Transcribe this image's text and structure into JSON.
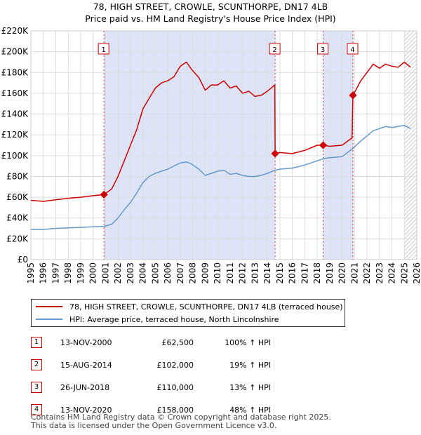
{
  "header": {
    "title_line1": "78, HIGH STREET, CROWLE, SCUNTHORPE, DN17 4LB",
    "title_line2": "Price paid vs. HM Land Registry's House Price Index (HPI)"
  },
  "colors": {
    "price": "#cc0000",
    "hpi": "#6699cc",
    "shade": "#dde4f7",
    "grid": "#dddddd"
  },
  "legend": {
    "price_label": "78, HIGH STREET, CROWLE, SCUNTHORPE, DN17 4LB (terraced house)",
    "hpi_label": "HPI: Average price, terraced house, North Lincolnshire"
  },
  "transactions": [
    {
      "num": "1",
      "date": "13-NOV-2000",
      "price": "£62,500",
      "hpi_change": "100% ↑ HPI"
    },
    {
      "num": "2",
      "date": "15-AUG-2014",
      "price": "£102,000",
      "hpi_change": "19% ↑ HPI"
    },
    {
      "num": "3",
      "date": "26-JUN-2018",
      "price": "£110,000",
      "hpi_change": "13% ↑ HPI"
    },
    {
      "num": "4",
      "date": "13-NOV-2020",
      "price": "£158,000",
      "hpi_change": "48% ↑ HPI"
    }
  ],
  "footer": {
    "line1": "Contains HM Land Registry data © Crown copyright and database right 2025.",
    "line2": "This data is licensed under the Open Government Licence v3.0."
  },
  "chart_data": {
    "type": "line",
    "title": "78, HIGH STREET, CROWLE, SCUNTHORPE, DN17 4LB",
    "subtitle": "Price paid vs. HM Land Registry's House Price Index (HPI)",
    "xlabel": "",
    "ylabel": "",
    "xlim": [
      1995,
      2026
    ],
    "ylim": [
      0,
      220000
    ],
    "yticks": [
      0,
      20000,
      40000,
      60000,
      80000,
      100000,
      120000,
      140000,
      160000,
      180000,
      200000,
      220000
    ],
    "ytick_labels": [
      "£0",
      "£20K",
      "£40K",
      "£60K",
      "£80K",
      "£100K",
      "£120K",
      "£140K",
      "£160K",
      "£180K",
      "£200K",
      "£220K"
    ],
    "xticks": [
      "1995",
      "1996",
      "1997",
      "1998",
      "1999",
      "2000",
      "2001",
      "2002",
      "2003",
      "2004",
      "2005",
      "2006",
      "2007",
      "2008",
      "2009",
      "2010",
      "2011",
      "2012",
      "2013",
      "2014",
      "2015",
      "2016",
      "2017",
      "2018",
      "2019",
      "2020",
      "2021",
      "2022",
      "2023",
      "2024",
      "2025",
      "2026"
    ],
    "shaded_periods": [
      [
        2000.87,
        2014.62
      ],
      [
        2018.48,
        2020.87
      ]
    ],
    "hatch_from": 2025.0,
    "series": [
      {
        "name": "78, HIGH STREET, CROWLE, SCUNTHORPE, DN17 4LB (terraced house)",
        "x": [
          1995.0,
          1996.0,
          1997.0,
          1998.0,
          1999.0,
          2000.0,
          2000.87,
          2001.5,
          2002.0,
          2002.5,
          2003.0,
          2003.5,
          2004.0,
          2004.5,
          2005.0,
          2005.5,
          2006.0,
          2006.5,
          2007.0,
          2007.5,
          2007.9,
          2008.5,
          2009.0,
          2009.5,
          2010.0,
          2010.5,
          2011.0,
          2011.5,
          2012.0,
          2012.5,
          2013.0,
          2013.5,
          2014.0,
          2014.6,
          2014.62,
          2015.0,
          2016.0,
          2017.0,
          2018.0,
          2018.48,
          2019.0,
          2020.0,
          2020.8,
          2020.87,
          2021.5,
          2022.0,
          2022.5,
          2023.0,
          2023.5,
          2024.0,
          2024.5,
          2025.0,
          2025.5
        ],
        "values": [
          57000,
          56000,
          57500,
          59000,
          60000,
          61500,
          62500,
          68000,
          80000,
          95000,
          110000,
          125000,
          145000,
          155000,
          165000,
          170000,
          172000,
          176000,
          186000,
          190000,
          183000,
          175000,
          163000,
          168000,
          168000,
          172000,
          165000,
          167000,
          160000,
          162000,
          157000,
          158000,
          162000,
          168000,
          102000,
          103000,
          102000,
          105000,
          110000,
          110000,
          109000,
          110000,
          117000,
          158000,
          172000,
          180000,
          188000,
          184000,
          188000,
          186000,
          185000,
          190000,
          185000
        ]
      },
      {
        "name": "HPI: Average price, terraced house, North Lincolnshire",
        "x": [
          1995.0,
          1996.0,
          1997.0,
          1998.0,
          1999.0,
          2000.0,
          2000.87,
          2001.5,
          2002.0,
          2002.5,
          2003.0,
          2003.5,
          2004.0,
          2004.5,
          2005.0,
          2005.5,
          2006.0,
          2006.5,
          2007.0,
          2007.5,
          2007.9,
          2008.5,
          2009.0,
          2009.5,
          2010.0,
          2010.5,
          2011.0,
          2011.5,
          2012.0,
          2012.5,
          2013.0,
          2013.5,
          2014.0,
          2014.62,
          2015.0,
          2016.0,
          2017.0,
          2018.0,
          2018.48,
          2019.0,
          2020.0,
          2020.87,
          2021.5,
          2022.0,
          2022.5,
          2023.0,
          2023.5,
          2024.0,
          2024.5,
          2025.0,
          2025.5
        ],
        "values": [
          29000,
          29000,
          30000,
          30500,
          31000,
          31500,
          32000,
          34000,
          40000,
          48000,
          55000,
          64000,
          74000,
          80000,
          83000,
          85000,
          87000,
          90000,
          93000,
          94000,
          92000,
          87000,
          81000,
          83000,
          85000,
          86000,
          82000,
          83000,
          81000,
          80000,
          80000,
          81000,
          83000,
          86000,
          87000,
          88000,
          91000,
          95000,
          97000,
          98000,
          99000,
          107000,
          114000,
          119000,
          124000,
          126000,
          128000,
          127000,
          128000,
          129000,
          126000
        ]
      }
    ],
    "markers": [
      {
        "label": "1",
        "x": 2000.87,
        "y": 62500
      },
      {
        "label": "2",
        "x": 2014.62,
        "y": 102000
      },
      {
        "label": "3",
        "x": 2018.48,
        "y": 110000
      },
      {
        "label": "4",
        "x": 2020.87,
        "y": 158000
      }
    ]
  }
}
